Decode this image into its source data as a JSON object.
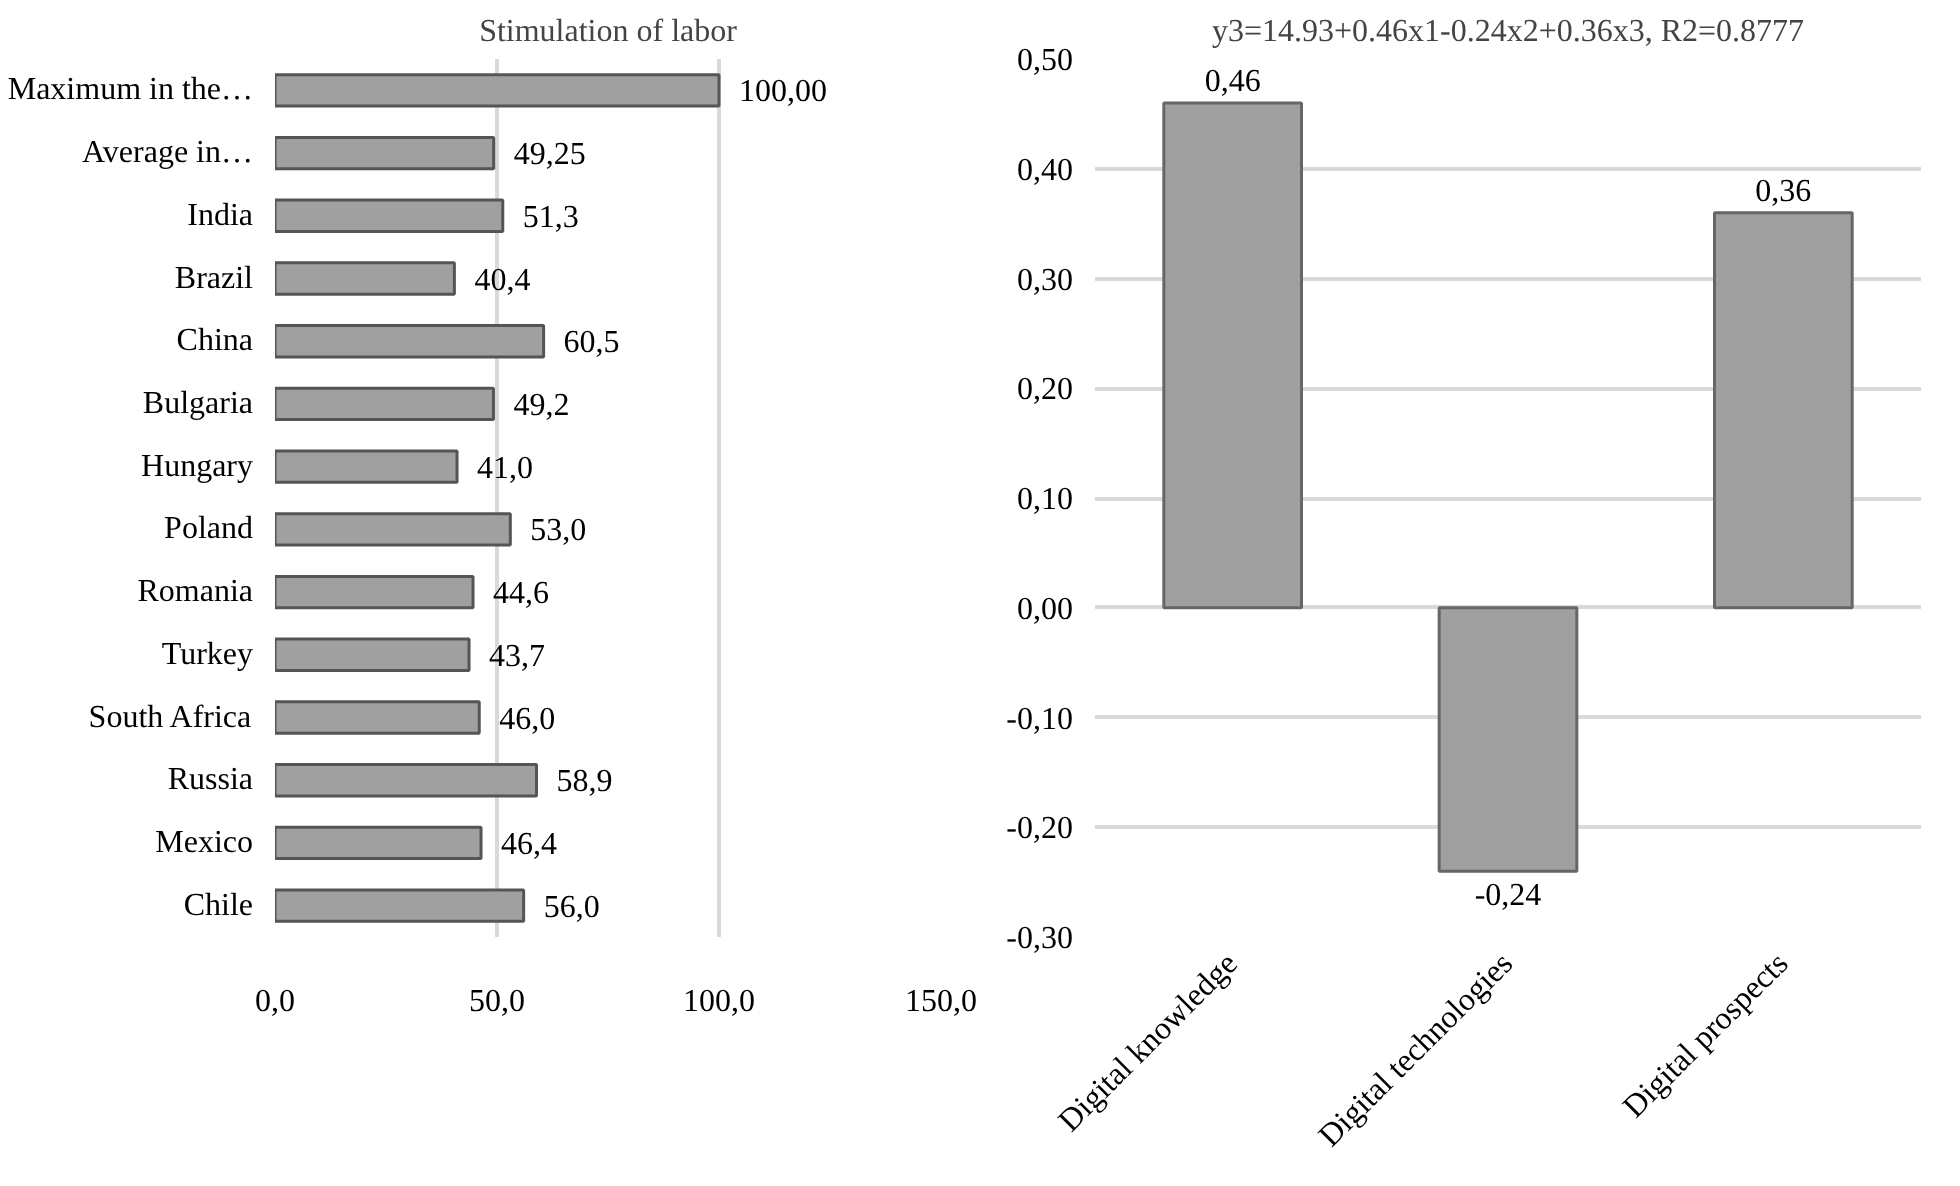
{
  "chart_data": [
    {
      "type": "bar",
      "orientation": "horizontal",
      "title": "Stimulation of labor",
      "categories": [
        "Maximum in the…",
        "Average in…",
        "India",
        "Brazil",
        "China",
        "Bulgaria",
        "Hungary",
        "Poland",
        "Romania",
        "Turkey",
        "South Africa",
        "Russia",
        "Mexico",
        "Chile"
      ],
      "values": [
        100.0,
        49.25,
        51.3,
        40.4,
        60.5,
        49.2,
        41.0,
        53.0,
        44.6,
        43.7,
        46.0,
        58.9,
        46.4,
        56.0
      ],
      "value_labels": [
        "100,00",
        "49,25",
        "51,3",
        "40,4",
        "60,5",
        "49,2",
        "41,0",
        "53,0",
        "44,6",
        "43,7",
        "46,0",
        "58,9",
        "46,4",
        "56,0"
      ],
      "color": "#a0a0a0",
      "xlim": [
        0,
        150
      ],
      "xticks": [
        {
          "value": 0,
          "label": "0,0"
        },
        {
          "value": 50,
          "label": "50,0"
        },
        {
          "value": 100,
          "label": "100,0"
        },
        {
          "value": 150,
          "label": "150,0"
        }
      ],
      "grid": "x"
    },
    {
      "type": "bar",
      "title": "y3=14.93+0.46x1-0.24x2+0.36x3, R2=0.8777",
      "categories": [
        "Digital knowledge",
        "Digital technologies",
        "Digital prospects"
      ],
      "values": [
        0.46,
        -0.24,
        0.36
      ],
      "value_labels": [
        "0,46",
        "-0,24",
        "0,36"
      ],
      "color": "#a0a0a0",
      "ylim": [
        -0.3,
        0.5
      ],
      "yticks": [
        {
          "value": -0.3,
          "label": "-0,30"
        },
        {
          "value": -0.2,
          "label": "-0,20"
        },
        {
          "value": -0.1,
          "label": "-0,10"
        },
        {
          "value": 0,
          "label": "0,00"
        },
        {
          "value": 0.1,
          "label": "0,10"
        },
        {
          "value": 0.2,
          "label": "0,20"
        },
        {
          "value": 0.3,
          "label": "0,30"
        },
        {
          "value": 0.4,
          "label": "0,40"
        },
        {
          "value": 0.5,
          "label": "0,50"
        }
      ],
      "grid": "y"
    }
  ]
}
